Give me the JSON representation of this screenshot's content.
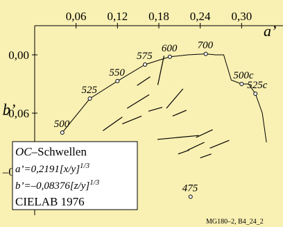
{
  "chart_data": {
    "type": "scatter",
    "x_axis": {
      "label": "a’",
      "min": 0.0,
      "max": 0.36,
      "ticks": [
        0.06,
        0.12,
        0.18,
        0.24,
        0.3
      ],
      "tick_labels": [
        "0,06",
        "0,12",
        "0,18",
        "0,24",
        "0,30"
      ]
    },
    "y_axis": {
      "label": "b’",
      "min": -0.165,
      "max": 0.03,
      "ticks": [
        0.0,
        -0.06,
        -0.12
      ],
      "tick_labels": [
        "0,00",
        "–0,06",
        "–0,12"
      ]
    },
    "spectral_locus": [
      [
        0.336,
        -0.09
      ],
      [
        0.33,
        -0.06
      ],
      [
        0.32,
        -0.04
      ],
      [
        0.31,
        -0.03
      ],
      [
        0.3,
        -0.03
      ],
      [
        0.285,
        -0.026
      ],
      [
        0.274,
        0.0
      ],
      [
        0.262,
        0.0
      ],
      [
        0.248,
        0.001
      ],
      [
        0.222,
        0.0
      ],
      [
        0.196,
        -0.002
      ],
      [
        0.16,
        -0.01
      ],
      [
        0.12,
        -0.027
      ],
      [
        0.08,
        -0.045
      ],
      [
        0.04,
        -0.08
      ]
    ],
    "labelled_points": [
      {
        "label": "500",
        "a": 0.04,
        "b": -0.08
      },
      {
        "label": "525",
        "a": 0.08,
        "b": -0.045
      },
      {
        "label": "550",
        "a": 0.12,
        "b": -0.027
      },
      {
        "label": "575",
        "a": 0.16,
        "b": -0.01
      },
      {
        "label": "600",
        "a": 0.196,
        "b": -0.002
      },
      {
        "label": "700",
        "a": 0.248,
        "b": 0.001
      },
      {
        "label": "500c",
        "a": 0.3,
        "b": -0.03
      },
      {
        "label": "525c",
        "a": 0.32,
        "b": -0.04
      },
      {
        "label": "475",
        "a": 0.226,
        "b": -0.146
      }
    ],
    "threshold_marks": [
      {
        "a": 0.158,
        "b": -0.027,
        "dx": 0.0095,
        "db": 0.0045
      },
      {
        "a": 0.183,
        "b": -0.016,
        "dx": 0.0045,
        "db": 0.015
      },
      {
        "a": 0.113,
        "b": -0.071,
        "dx": 0.014,
        "db": 0.007
      },
      {
        "a": 0.15,
        "b": -0.048,
        "dx": 0.016,
        "db": 0.007
      },
      {
        "a": 0.141,
        "b": -0.067,
        "dx": 0.014,
        "db": 0.004
      },
      {
        "a": 0.175,
        "b": -0.056,
        "dx": 0.01,
        "db": 0.002
      },
      {
        "a": 0.21,
        "b": -0.06,
        "dx": 0.01,
        "db": 0.003
      },
      {
        "a": 0.203,
        "b": -0.045,
        "dx": 0.012,
        "db": 0.01
      },
      {
        "a": 0.246,
        "b": -0.081,
        "dx": 0.012,
        "db": 0.004
      },
      {
        "a": 0.268,
        "b": -0.092,
        "dx": 0.014,
        "db": 0.004
      },
      {
        "a": 0.208,
        "b": -0.085,
        "dx": 0.03,
        "db": 0.002
      },
      {
        "a": 0.216,
        "b": -0.1,
        "dx": 0.008,
        "db": 0.002
      },
      {
        "a": 0.234,
        "b": -0.094,
        "dx": 0.012,
        "db": 0.004
      },
      {
        "a": 0.248,
        "b": -0.104,
        "dx": 0.008,
        "db": 0.002
      }
    ]
  },
  "legend": {
    "title_italic": "OC",
    "title_rest": "–Schwellen",
    "line_a": "a’=0,2191[x/y]",
    "line_a_exp": "1/3",
    "line_b": "b’=–0,08376[z/y]",
    "line_b_exp": "1/3",
    "footer": "CIELAB 1976"
  },
  "footer_code": "MG180–2, B4_24_2",
  "colors": {
    "plot_bg": "#f9f0b3",
    "outer_bg": "#ffffff",
    "ink": "#000000"
  }
}
